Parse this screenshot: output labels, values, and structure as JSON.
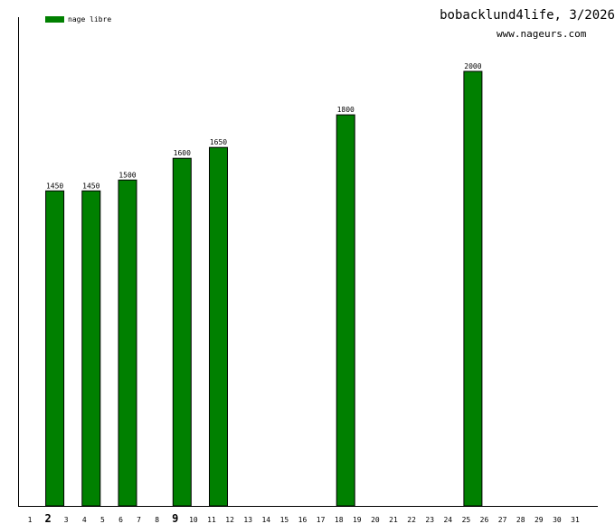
{
  "header": {
    "title": "bobacklund4life, 3/2026",
    "site": "www.nageurs.com"
  },
  "colors": {
    "bar": "#008000",
    "bar_stroke": "#000000",
    "axis": "#000000"
  },
  "chart_data": {
    "type": "bar",
    "title": "bobacklund4life, 3/2026",
    "xlabel": "",
    "ylabel": "",
    "categories": [
      "1",
      "2",
      "3",
      "4",
      "5",
      "6",
      "7",
      "8",
      "9",
      "10",
      "11",
      "12",
      "13",
      "14",
      "15",
      "16",
      "17",
      "18",
      "19",
      "20",
      "21",
      "22",
      "23",
      "24",
      "25",
      "26",
      "27",
      "28",
      "29",
      "30",
      "31"
    ],
    "highlighted_categories": [
      "2",
      "9"
    ],
    "series": [
      {
        "name": "nage libre",
        "values": [
          null,
          1450,
          null,
          1450,
          null,
          1500,
          null,
          null,
          1600,
          null,
          1650,
          null,
          null,
          null,
          null,
          null,
          null,
          1800,
          null,
          null,
          null,
          null,
          null,
          null,
          2000,
          null,
          null,
          null,
          null,
          null,
          null
        ]
      }
    ],
    "ylim": [
      0,
      2000
    ],
    "grid": false,
    "legend_position": "top-left"
  }
}
